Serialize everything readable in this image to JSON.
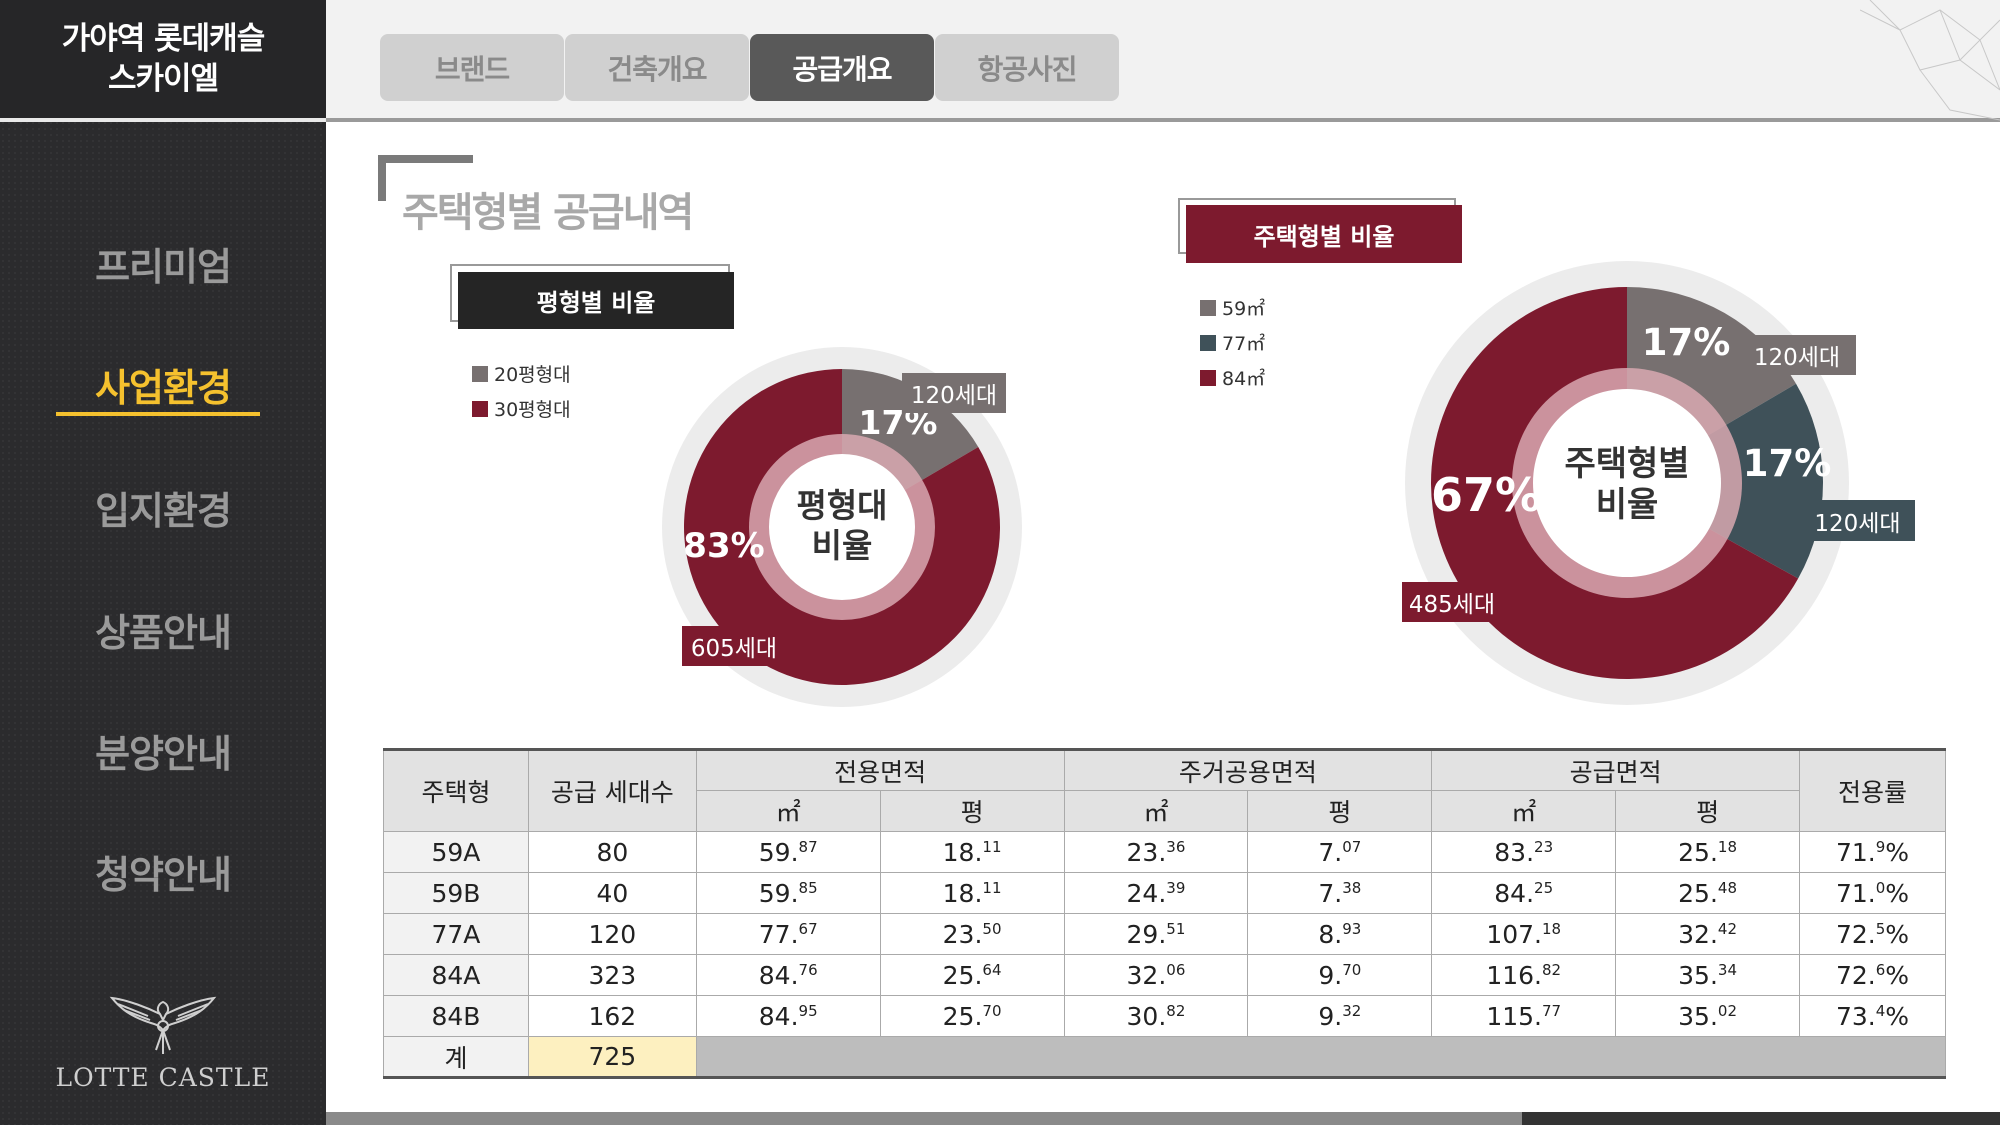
{
  "sidebar": {
    "title_line1": "가야역 롯데캐슬",
    "title_line2": "스카이엘",
    "items": [
      {
        "label": "프리미엄"
      },
      {
        "label": "사업환경"
      },
      {
        "label": "입지환경"
      },
      {
        "label": "상품안내"
      },
      {
        "label": "분양안내"
      },
      {
        "label": "청약안내"
      }
    ],
    "active_index": 1,
    "logo_text": "LOTTE CASTLE"
  },
  "tabs": [
    {
      "label": "브랜드"
    },
    {
      "label": "건축개요"
    },
    {
      "label": "공급개요"
    },
    {
      "label": "항공사진"
    }
  ],
  "active_tab": 2,
  "section_title": "주택형별 공급내역",
  "colors": {
    "crimson": "#7d1a2e",
    "gray": "#777070",
    "slate": "#3f5159",
    "gold": "#f5c12e"
  },
  "chart_data": [
    {
      "type": "pie",
      "title": "평형별 비율",
      "center_label_line1": "평형대",
      "center_label_line2": "비율",
      "legend": [
        "20평형대",
        "30평형대"
      ],
      "slices": [
        {
          "name": "20평형대",
          "percent_label": "17%",
          "count_label": "120세대",
          "value": 120,
          "color": "#777070"
        },
        {
          "name": "30평형대",
          "percent_label": "83%",
          "count_label": "605세대",
          "value": 605,
          "color": "#7d1a2e"
        }
      ]
    },
    {
      "type": "pie",
      "title": "주택형별 비율",
      "center_label_line1": "주택형별",
      "center_label_line2": "비율",
      "legend": [
        "59㎡",
        "77㎡",
        "84㎡"
      ],
      "slices": [
        {
          "name": "59㎡",
          "percent_label": "17%",
          "count_label": "120세대",
          "value": 120,
          "color": "#777070"
        },
        {
          "name": "77㎡",
          "percent_label": "17%",
          "count_label": "120세대",
          "value": 120,
          "color": "#3f5159"
        },
        {
          "name": "84㎡",
          "percent_label": "67%",
          "count_label": "485세대",
          "value": 485,
          "color": "#7d1a2e"
        }
      ]
    }
  ],
  "table": {
    "headers": {
      "type": "주택형",
      "units": "공급 세대수",
      "exclusive": "전용면적",
      "common": "주거공용면적",
      "supply": "공급면적",
      "ratio": "전용률",
      "sqm": "㎡",
      "pyeong": "평"
    },
    "rows": [
      {
        "type": "59A",
        "units": "80",
        "ex_m": [
          "59.",
          "87"
        ],
        "ex_p": [
          "18.",
          "11"
        ],
        "co_m": [
          "23.",
          "36"
        ],
        "co_p": [
          "7.",
          "07"
        ],
        "su_m": [
          "83.",
          "23"
        ],
        "su_p": [
          "25.",
          "18"
        ],
        "ratio": [
          "71.",
          "9",
          "%"
        ]
      },
      {
        "type": "59B",
        "units": "40",
        "ex_m": [
          "59.",
          "85"
        ],
        "ex_p": [
          "18.",
          "11"
        ],
        "co_m": [
          "24.",
          "39"
        ],
        "co_p": [
          "7.",
          "38"
        ],
        "su_m": [
          "84.",
          "25"
        ],
        "su_p": [
          "25.",
          "48"
        ],
        "ratio": [
          "71.",
          "0",
          "%"
        ]
      },
      {
        "type": "77A",
        "units": "120",
        "ex_m": [
          "77.",
          "67"
        ],
        "ex_p": [
          "23.",
          "50"
        ],
        "co_m": [
          "29.",
          "51"
        ],
        "co_p": [
          "8.",
          "93"
        ],
        "su_m": [
          "107.",
          "18"
        ],
        "su_p": [
          "32.",
          "42"
        ],
        "ratio": [
          "72.",
          "5",
          "%"
        ]
      },
      {
        "type": "84A",
        "units": "323",
        "ex_m": [
          "84.",
          "76"
        ],
        "ex_p": [
          "25.",
          "64"
        ],
        "co_m": [
          "32.",
          "06"
        ],
        "co_p": [
          "9.",
          "70"
        ],
        "su_m": [
          "116.",
          "82"
        ],
        "su_p": [
          "35.",
          "34"
        ],
        "ratio": [
          "72.",
          "6",
          "%"
        ]
      },
      {
        "type": "84B",
        "units": "162",
        "ex_m": [
          "84.",
          "95"
        ],
        "ex_p": [
          "25.",
          "70"
        ],
        "co_m": [
          "30.",
          "82"
        ],
        "co_p": [
          "9.",
          "32"
        ],
        "su_m": [
          "115.",
          "77"
        ],
        "su_p": [
          "35.",
          "02"
        ],
        "ratio": [
          "73.",
          "4",
          "%"
        ]
      }
    ],
    "total_label": "계",
    "total_units": "725"
  }
}
